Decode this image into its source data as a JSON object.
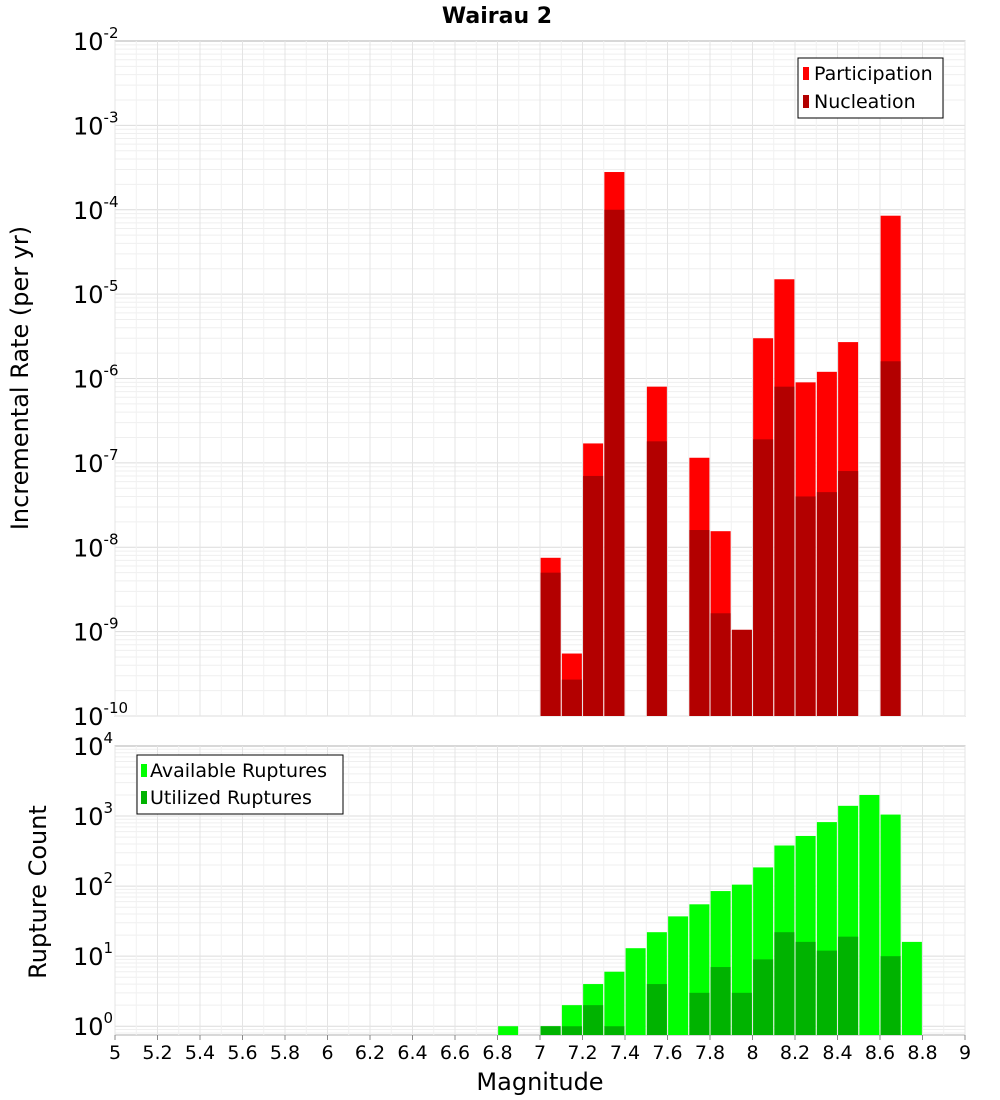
{
  "chart_data": [
    {
      "type": "bar",
      "title": "Wairau 2",
      "xlabel": "Magnitude",
      "ylabel": "Incremental Rate (per yr)",
      "y_scale": "log",
      "ylim": [
        1e-10,
        0.01
      ],
      "xlim": [
        5,
        9
      ],
      "grid": true,
      "legend_position": "top-right",
      "y_tick_labels": [
        {
          "base": "10",
          "exp": "-2",
          "value": 0.01
        },
        {
          "base": "10",
          "exp": "-3",
          "value": 0.001
        },
        {
          "base": "10",
          "exp": "-4",
          "value": 0.0001
        },
        {
          "base": "10",
          "exp": "-5",
          "value": 1e-05
        },
        {
          "base": "10",
          "exp": "-6",
          "value": 1e-06
        },
        {
          "base": "10",
          "exp": "-7",
          "value": 1e-07
        },
        {
          "base": "10",
          "exp": "-8",
          "value": 1e-08
        },
        {
          "base": "10",
          "exp": "-9",
          "value": 1e-09
        },
        {
          "base": "10",
          "exp": "-10",
          "value": 1e-10
        }
      ],
      "series": [
        {
          "name": "Participation",
          "color": "#ff0000",
          "points": [
            {
              "x": 7.05,
              "y": 7.5e-09
            },
            {
              "x": 7.15,
              "y": 5.5e-10
            },
            {
              "x": 7.25,
              "y": 1.7e-07
            },
            {
              "x": 7.35,
              "y": 0.00028
            },
            {
              "x": 7.55,
              "y": 8e-07
            },
            {
              "x": 7.75,
              "y": 1.15e-07
            },
            {
              "x": 7.85,
              "y": 1.55e-08
            },
            {
              "x": 7.95,
              "y": 1.05e-09
            },
            {
              "x": 8.05,
              "y": 3e-06
            },
            {
              "x": 8.15,
              "y": 1.5e-05
            },
            {
              "x": 8.25,
              "y": 9e-07
            },
            {
              "x": 8.35,
              "y": 1.2e-06
            },
            {
              "x": 8.45,
              "y": 2.7e-06
            },
            {
              "x": 8.65,
              "y": 8.5e-05
            }
          ]
        },
        {
          "name": "Nucleation",
          "color": "#b30000",
          "points": [
            {
              "x": 7.05,
              "y": 5e-09
            },
            {
              "x": 7.15,
              "y": 2.7e-10
            },
            {
              "x": 7.25,
              "y": 7e-08
            },
            {
              "x": 7.35,
              "y": 0.0001
            },
            {
              "x": 7.55,
              "y": 1.8e-07
            },
            {
              "x": 7.75,
              "y": 1.6e-08
            },
            {
              "x": 7.85,
              "y": 1.65e-09
            },
            {
              "x": 7.95,
              "y": 1.05e-09
            },
            {
              "x": 8.05,
              "y": 1.9e-07
            },
            {
              "x": 8.15,
              "y": 8e-07
            },
            {
              "x": 8.25,
              "y": 4e-08
            },
            {
              "x": 8.35,
              "y": 4.5e-08
            },
            {
              "x": 8.45,
              "y": 8e-08
            },
            {
              "x": 8.65,
              "y": 1.6e-06
            }
          ]
        }
      ]
    },
    {
      "type": "bar",
      "xlabel": "Magnitude",
      "ylabel": "Rupture Count",
      "y_scale": "log",
      "ylim": [
        0.75,
        10000
      ],
      "xlim": [
        5,
        9
      ],
      "grid": true,
      "legend_position": "top-left",
      "x_ticks": [
        "5",
        "5.2",
        "5.4",
        "5.6",
        "5.8",
        "6",
        "6.2",
        "6.4",
        "6.6",
        "6.8",
        "7",
        "7.2",
        "7.4",
        "7.6",
        "7.8",
        "8",
        "8.2",
        "8.4",
        "8.6",
        "8.8",
        "9"
      ],
      "y_tick_labels": [
        {
          "base": "10",
          "exp": "4",
          "value": 10000
        },
        {
          "base": "10",
          "exp": "3",
          "value": 1000
        },
        {
          "base": "10",
          "exp": "2",
          "value": 100
        },
        {
          "base": "10",
          "exp": "1",
          "value": 10
        },
        {
          "base": "10",
          "exp": "0",
          "value": 1
        }
      ],
      "series": [
        {
          "name": "Available Ruptures",
          "color": "#00ff00",
          "points": [
            {
              "x": 6.85,
              "y": 1
            },
            {
              "x": 7.05,
              "y": 1
            },
            {
              "x": 7.15,
              "y": 2
            },
            {
              "x": 7.25,
              "y": 4
            },
            {
              "x": 7.35,
              "y": 6
            },
            {
              "x": 7.45,
              "y": 13
            },
            {
              "x": 7.55,
              "y": 22
            },
            {
              "x": 7.65,
              "y": 37
            },
            {
              "x": 7.75,
              "y": 55
            },
            {
              "x": 7.85,
              "y": 85
            },
            {
              "x": 7.95,
              "y": 105
            },
            {
              "x": 8.05,
              "y": 185
            },
            {
              "x": 8.15,
              "y": 380
            },
            {
              "x": 8.25,
              "y": 520
            },
            {
              "x": 8.35,
              "y": 820
            },
            {
              "x": 8.45,
              "y": 1400
            },
            {
              "x": 8.55,
              "y": 2000
            },
            {
              "x": 8.65,
              "y": 1050
            },
            {
              "x": 8.75,
              "y": 16
            }
          ]
        },
        {
          "name": "Utilized Ruptures",
          "color": "#00b300",
          "points": [
            {
              "x": 7.05,
              "y": 1
            },
            {
              "x": 7.15,
              "y": 1
            },
            {
              "x": 7.25,
              "y": 2
            },
            {
              "x": 7.35,
              "y": 1
            },
            {
              "x": 7.55,
              "y": 4
            },
            {
              "x": 7.75,
              "y": 3
            },
            {
              "x": 7.85,
              "y": 7
            },
            {
              "x": 7.95,
              "y": 3
            },
            {
              "x": 8.05,
              "y": 9
            },
            {
              "x": 8.15,
              "y": 22
            },
            {
              "x": 8.25,
              "y": 16
            },
            {
              "x": 8.35,
              "y": 12
            },
            {
              "x": 8.45,
              "y": 19
            },
            {
              "x": 8.65,
              "y": 10
            }
          ]
        }
      ]
    }
  ]
}
